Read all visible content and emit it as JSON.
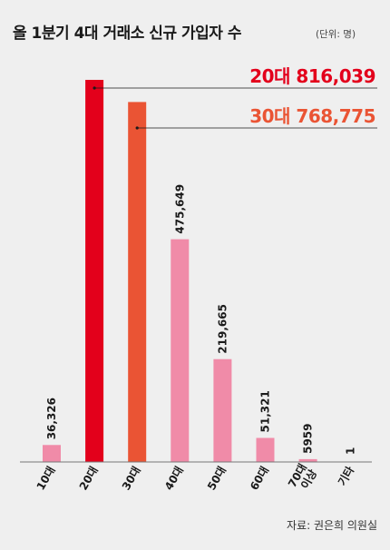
{
  "title": "올 1분기 4대 거래소 신규 가입자 수",
  "unit": "(단위: 명)",
  "source": "자료: 권은희 의원실",
  "colors": {
    "background": "#efefef",
    "pink": "#f08ba8",
    "red": "#e3001b",
    "orange": "#ea5434",
    "axis": "#777777"
  },
  "callouts": [
    {
      "text": "20대 816,039",
      "color": "#e3001b",
      "index": 1
    },
    {
      "text": "30대 768,775",
      "color": "#ea5434",
      "index": 2
    }
  ],
  "chart_data": {
    "type": "bar",
    "title": "올 1분기 4대 거래소 신규 가입자 수",
    "unit": "(단위: 명)",
    "categories": [
      "10대",
      "20대",
      "30대",
      "40대",
      "50대",
      "60대",
      "70대 이상",
      "기타"
    ],
    "values": [
      36326,
      816039,
      768775,
      475649,
      219665,
      51321,
      5959,
      1
    ],
    "value_labels": [
      "36,326",
      "",
      "",
      "475,649",
      "219,665",
      "51,321",
      "5959",
      "1"
    ],
    "bar_colors": [
      "#f08ba8",
      "#e3001b",
      "#ea5434",
      "#f08ba8",
      "#f08ba8",
      "#f08ba8",
      "#f08ba8",
      "#f08ba8"
    ],
    "ylim": [
      0,
      816039
    ],
    "grid": false,
    "legend": "none"
  }
}
